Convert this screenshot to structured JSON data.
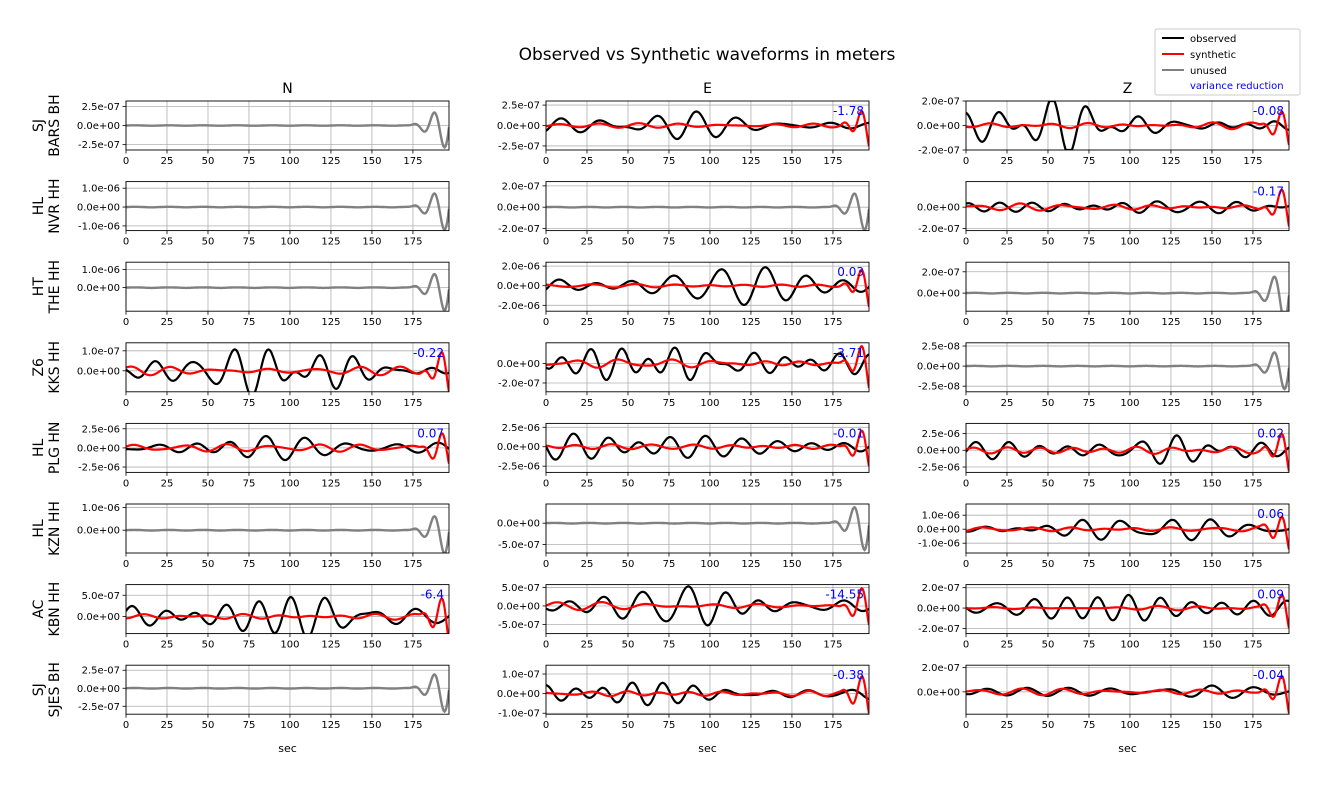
{
  "chart_data": {
    "type": "line",
    "title": "Observed vs Synthetic waveforms in meters",
    "xlabel": "sec",
    "xlim": [
      0,
      197
    ],
    "xticks": [
      0,
      25,
      50,
      75,
      100,
      125,
      150,
      175
    ],
    "grid": true,
    "columns": [
      "N",
      "E",
      "Z"
    ],
    "legend": {
      "placement": "top-right",
      "entries": [
        {
          "label": "observed",
          "color": "#000000"
        },
        {
          "label": "synthetic",
          "color": "#ff0000"
        },
        {
          "label": "unused",
          "color": "#808080"
        },
        {
          "label": "variance reduction",
          "color": "#0000ff"
        }
      ]
    },
    "colors": {
      "observed": "#000000",
      "synthetic": "#ff0000",
      "unused": "#808080",
      "variance": "#0000ff",
      "grid": "#b0b0b0"
    },
    "stations": [
      {
        "network": "SJ",
        "station": "BARS BH",
        "panels": [
          {
            "status": "unused",
            "ylim": [
              -3.2e-07,
              3.2e-07
            ],
            "yticks": [
              -2.5e-07,
              0,
              2.5e-07
            ],
            "ytick_labels": [
              "-2.5e-07",
              "0.0e+00",
              "2.5e-07"
            ],
            "vr": ""
          },
          {
            "status": "used",
            "ylim": [
              -3e-07,
              3e-07
            ],
            "yticks": [
              -2.5e-07,
              0,
              2.5e-07
            ],
            "ytick_labels": [
              "-2.5e-07",
              "0.0e+00",
              "2.5e-07"
            ],
            "vr": "-1.78"
          },
          {
            "status": "used",
            "ylim": [
              -2e-07,
              2e-07
            ],
            "yticks": [
              -2e-07,
              0,
              2e-07
            ],
            "ytick_labels": [
              "-2.0e-07",
              "0.0e+00",
              "2.0e-07"
            ],
            "vr": "-0.08"
          }
        ]
      },
      {
        "network": "HL",
        "station": "NVR HH",
        "panels": [
          {
            "status": "unused",
            "ylim": [
              -1.25e-06,
              1.35e-06
            ],
            "yticks": [
              -1e-06,
              0,
              1e-06
            ],
            "ytick_labels": [
              "-1.0e-06",
              "0.0e+00",
              "1.0e-06"
            ],
            "vr": ""
          },
          {
            "status": "unused",
            "ylim": [
              -2.2e-07,
              2.4e-07
            ],
            "yticks": [
              -2e-07,
              0,
              2e-07
            ],
            "ytick_labels": [
              "-2.0e-07",
              "0.0e+00",
              "2.0e-07"
            ],
            "vr": ""
          },
          {
            "status": "used",
            "ylim": [
              -2.2e-07,
              2.4e-07
            ],
            "yticks": [
              -2e-07,
              0
            ],
            "ytick_labels": [
              "-2.0e-07",
              "0.0e+00"
            ],
            "vr": "-0.17"
          }
        ]
      },
      {
        "network": "HT",
        "station": "THE HH",
        "panels": [
          {
            "status": "unused",
            "ylim": [
              -1.3e-06,
              1.4e-06
            ],
            "yticks": [
              0,
              1e-06
            ],
            "ytick_labels": [
              "0.0e+00",
              "1.0e-06"
            ],
            "vr": ""
          },
          {
            "status": "used",
            "ylim": [
              -2.6e-06,
              2.4e-06
            ],
            "yticks": [
              -2e-06,
              0,
              2e-06
            ],
            "ytick_labels": [
              "-2.0e-06",
              "0.0e+00",
              "2.0e-06"
            ],
            "vr": "0.03"
          },
          {
            "status": "unused",
            "ylim": [
              -1.7e-07,
              2.9e-07
            ],
            "yticks": [
              0,
              2e-07
            ],
            "ytick_labels": [
              "0.0e+00",
              "2.0e-07"
            ],
            "vr": ""
          }
        ]
      },
      {
        "network": "Z6",
        "station": "KKS HH",
        "panels": [
          {
            "status": "used",
            "ylim": [
              -1.05e-07,
              1.4e-07
            ],
            "yticks": [
              0,
              1e-07
            ],
            "ytick_labels": [
              "0.0e+00",
              "1.0e-07"
            ],
            "vr": "-0.22"
          },
          {
            "status": "used",
            "ylim": [
              -2.9e-07,
              2.1e-07
            ],
            "yticks": [
              -2e-07,
              0
            ],
            "ytick_labels": [
              "-2.0e-07",
              "0.0e+00"
            ],
            "vr": "-3.71"
          },
          {
            "status": "unused",
            "ylim": [
              -3.2e-08,
              2.9e-08
            ],
            "yticks": [
              -2.5e-08,
              0,
              2.5e-08
            ],
            "ytick_labels": [
              "-2.5e-08",
              "0.0e+00",
              "2.5e-08"
            ],
            "vr": ""
          }
        ]
      },
      {
        "network": "HL",
        "station": "PLG HN",
        "panels": [
          {
            "status": "used",
            "ylim": [
              -3.2e-06,
              3.2e-06
            ],
            "yticks": [
              -2.5e-06,
              0,
              2.5e-06
            ],
            "ytick_labels": [
              "-2.5e-06",
              "0.0e+00",
              "2.5e-06"
            ],
            "vr": "0.07"
          },
          {
            "status": "used",
            "ylim": [
              -3.3e-06,
              3e-06
            ],
            "yticks": [
              -2.5e-06,
              0,
              2.5e-06
            ],
            "ytick_labels": [
              "-2.5e-06",
              "0.0e+00",
              "2.5e-06"
            ],
            "vr": "-0.01"
          },
          {
            "status": "used",
            "ylim": [
              -3.3e-06,
              4e-06
            ],
            "yticks": [
              -2.5e-06,
              0,
              2.5e-06
            ],
            "ytick_labels": [
              "-2.5e-06",
              "0.0e+00",
              "2.5e-06"
            ],
            "vr": "0.02"
          }
        ]
      },
      {
        "network": "HL",
        "station": "KZN HH",
        "panels": [
          {
            "status": "unused",
            "ylim": [
              -1e-06,
              1.15e-06
            ],
            "yticks": [
              0,
              1e-06
            ],
            "ytick_labels": [
              "0.0e+00",
              "1.0e-06"
            ],
            "vr": ""
          },
          {
            "status": "unused",
            "ylim": [
              -7e-07,
              4.5e-07
            ],
            "yticks": [
              -5e-07,
              0
            ],
            "ytick_labels": [
              "-5.0e-07",
              "0.0e+00"
            ],
            "vr": ""
          },
          {
            "status": "used",
            "ylim": [
              -1.7e-06,
              1.8e-06
            ],
            "yticks": [
              -1e-06,
              0,
              1e-06
            ],
            "ytick_labels": [
              "-1.0e-06",
              "0.0e+00",
              "1.0e-06"
            ],
            "vr": "0.06"
          }
        ]
      },
      {
        "network": "AC",
        "station": "KBN HH",
        "panels": [
          {
            "status": "used",
            "ylim": [
              -4e-07,
              7.5e-07
            ],
            "yticks": [
              0,
              5e-07
            ],
            "ytick_labels": [
              "0.0e+00",
              "5.0e-07"
            ],
            "vr": "-6.4"
          },
          {
            "status": "used",
            "ylim": [
              -7.5e-07,
              5.8e-07
            ],
            "yticks": [
              -5e-07,
              0,
              5e-07
            ],
            "ytick_labels": [
              "-5.0e-07",
              "0.0e+00",
              "5.0e-07"
            ],
            "vr": "-14.55"
          },
          {
            "status": "used",
            "ylim": [
              -2.5e-07,
              2.3e-07
            ],
            "yticks": [
              -2e-07,
              0,
              2e-07
            ],
            "ytick_labels": [
              "-2.0e-07",
              "0.0e+00",
              "2.0e-07"
            ],
            "vr": "0.09"
          }
        ]
      },
      {
        "network": "SJ",
        "station": "SJES BH",
        "panels": [
          {
            "status": "unused",
            "ylim": [
              -3.6e-07,
              3.2e-07
            ],
            "yticks": [
              -2.5e-07,
              0,
              2.5e-07
            ],
            "ytick_labels": [
              "-2.5e-07",
              "0.0e+00",
              "2.5e-07"
            ],
            "vr": ""
          },
          {
            "status": "used",
            "ylim": [
              -1.05e-07,
              1.45e-07
            ],
            "yticks": [
              -1e-07,
              0,
              1e-07
            ],
            "ytick_labels": [
              "-1.0e-07",
              "0.0e+00",
              "1.0e-07"
            ],
            "vr": "-0.38"
          },
          {
            "status": "used",
            "ylim": [
              -1.85e-07,
              2.2e-07
            ],
            "yticks": [
              0,
              2e-07
            ],
            "ytick_labels": [
              "0.0e+00",
              "2.0e-07"
            ],
            "vr": "-0.04"
          }
        ]
      }
    ]
  }
}
